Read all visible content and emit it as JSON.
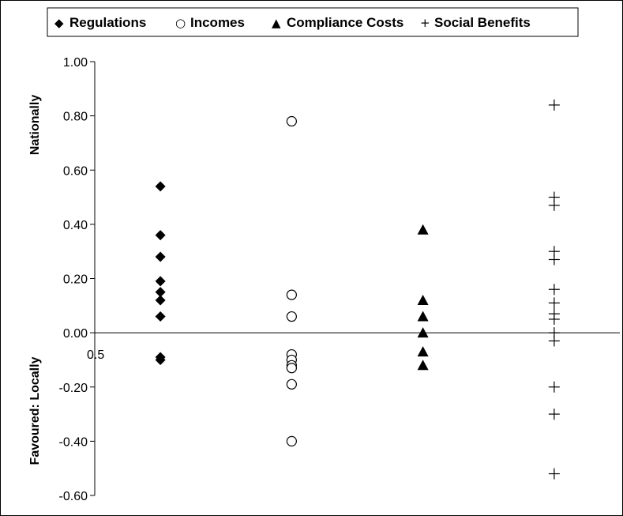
{
  "chart_data": {
    "type": "scatter",
    "title": "",
    "xlabel": "",
    "ylabel_top": "Nationally",
    "ylabel_bottom": "Favoured:  Locally",
    "ylim": [
      -0.6,
      1.0
    ],
    "yticks": [
      1.0,
      0.8,
      0.6,
      0.4,
      0.2,
      0.0,
      -0.2,
      -0.4,
      -0.6
    ],
    "ytick_labels": [
      "1.00",
      "0.80",
      "0.60",
      "0.40",
      "0.20",
      "0.00",
      "-0.20",
      "-0.40",
      "-0.60"
    ],
    "xlim": [
      0.5,
      4.5
    ],
    "xtick_labels": [
      "0.5"
    ],
    "grid": false,
    "legend_position": "top",
    "series": [
      {
        "name": "Regulations",
        "marker": "diamond-filled",
        "x": 1,
        "values": [
          0.54,
          0.36,
          0.28,
          0.19,
          0.15,
          0.12,
          0.06,
          -0.09,
          -0.1
        ]
      },
      {
        "name": "Incomes",
        "marker": "circle-open",
        "x": 2,
        "values": [
          0.78,
          0.14,
          0.06,
          -0.08,
          -0.1,
          -0.12,
          -0.13,
          -0.19,
          -0.4
        ]
      },
      {
        "name": "Compliance Costs",
        "marker": "triangle-filled",
        "x": 3,
        "values": [
          0.38,
          0.12,
          0.06,
          0.0,
          -0.07,
          -0.12
        ]
      },
      {
        "name": "Social Benefits",
        "marker": "plus",
        "x": 4,
        "values": [
          0.84,
          0.5,
          0.47,
          0.3,
          0.27,
          0.16,
          0.11,
          0.07,
          0.05,
          0.0,
          -0.03,
          -0.2,
          -0.3,
          -0.52
        ]
      }
    ]
  },
  "legend": {
    "items": [
      {
        "symbol": "◆",
        "label": "Regulations"
      },
      {
        "symbol": "○",
        "label": "Incomes"
      },
      {
        "symbol": "▲",
        "label": "Compliance Costs"
      },
      {
        "symbol": "+",
        "label": "Social Benefits"
      }
    ]
  }
}
